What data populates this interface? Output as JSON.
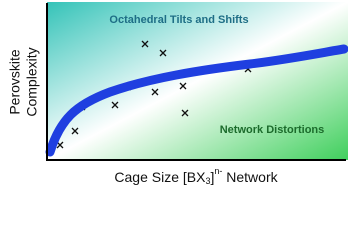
{
  "y_axis_label": {
    "line1": "Perovskite",
    "line2": "Complexity"
  },
  "x_axis_label": {
    "main": "Cage Size [BX",
    "subscript": "3",
    "close": "]",
    "superscript": "n-",
    "tail": " Network"
  },
  "annotations": {
    "upper": "Octahedral Tilts and Shifts",
    "lower": "Network Distortions"
  }
}
